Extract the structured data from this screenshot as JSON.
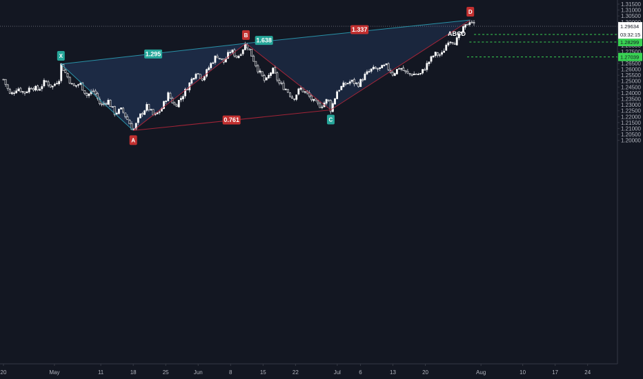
{
  "chart_data": {
    "type": "candlestick",
    "title": "ABCD",
    "price_axis": {
      "range": [
        1.195,
        1.3175
      ],
      "ticks": [
        "1.31500",
        "1.31000",
        "1.30500",
        "1.30000",
        "1.29500",
        "1.29000",
        "1.28500",
        "1.28000",
        "1.27500",
        "1.27000",
        "1.26500",
        "1.26000",
        "1.25500",
        "1.25000",
        "1.24500",
        "1.24000",
        "1.23500",
        "1.23000",
        "1.22500",
        "1.22000",
        "1.21500",
        "1.21000",
        "1.20500",
        "1.20000"
      ]
    },
    "time_axis": {
      "range": [
        0,
        216
      ],
      "ticks": [
        {
          "label": "20",
          "day": 0
        },
        {
          "label": "May",
          "day": 11
        },
        {
          "label": "11",
          "day": 21
        },
        {
          "label": "18",
          "day": 28
        },
        {
          "label": "25",
          "day": 35
        },
        {
          "label": "Jun",
          "day": 42
        },
        {
          "label": "8",
          "day": 49
        },
        {
          "label": "15",
          "day": 56
        },
        {
          "label": "22",
          "day": 63
        },
        {
          "label": "Jul",
          "day": 72
        },
        {
          "label": "6",
          "day": 77
        },
        {
          "label": "13",
          "day": 84
        },
        {
          "label": "20",
          "day": 91
        },
        {
          "label": "Aug",
          "day": 103
        },
        {
          "label": "10",
          "day": 112
        },
        {
          "label": "17",
          "day": 119
        },
        {
          "label": "24",
          "day": 126
        }
      ]
    },
    "current_price": {
      "value": 1.29634,
      "label": "1.29634",
      "countdown": "03:32:15",
      "color": "#ffffff"
    },
    "target_levels": [
      {
        "value": 1.28938,
        "label": "1.28938",
        "x_start": 101.5
      },
      {
        "value": 1.28299,
        "label": "1.28299",
        "x_start": 100.5
      },
      {
        "value": 1.27039,
        "label": "1.27039",
        "x_start": 100
      }
    ],
    "harmonic_pattern": {
      "points": [
        {
          "label": "X",
          "x": 12.4,
          "y": 1.2644,
          "color": "#26a69a"
        },
        {
          "label": "A",
          "x": 28,
          "y": 1.2083,
          "color": "#c23030"
        },
        {
          "label": "B",
          "x": 52.3,
          "y": 1.2819,
          "color": "#c23030"
        },
        {
          "label": "C",
          "x": 70.6,
          "y": 1.2257,
          "color": "#26a69a"
        },
        {
          "label": "D",
          "x": 100.7,
          "y": 1.3016,
          "color": "#c23030"
        }
      ],
      "ratios": [
        {
          "label": "1.295",
          "segment": "X-B",
          "x": 32.3,
          "y": 1.2729,
          "color": "#26a69a"
        },
        {
          "label": "1.638",
          "segment": "B-C",
          "x": 56.2,
          "y": 1.2844,
          "color": "#26a69a"
        },
        {
          "label": "1.337",
          "segment": "B-D",
          "x": 76.8,
          "y": 1.2935,
          "color": "#c23030"
        },
        {
          "label": "0.761",
          "segment": "A-C",
          "x": 49.2,
          "y": 1.2172,
          "color": "#c23030"
        }
      ]
    },
    "price_series": {
      "x": [
        0,
        1.5,
        3,
        4.5,
        6,
        7.5,
        9,
        10.5,
        12,
        12.4,
        13.5,
        15,
        16.5,
        18,
        19.5,
        21,
        22.5,
        24,
        25.5,
        27,
        28,
        29.5,
        31,
        32.5,
        34,
        35.5,
        37,
        38.5,
        40,
        41.5,
        43,
        44.5,
        46,
        47.5,
        49,
        50.5,
        52.3,
        53.5,
        55,
        56.5,
        58,
        59.5,
        61,
        62.5,
        64,
        65.5,
        67,
        68.5,
        70,
        70.6,
        72,
        73.5,
        75,
        76.5,
        78,
        79.5,
        81,
        82.5,
        84,
        85.5,
        87,
        88.5,
        90,
        91.5,
        93,
        94.5,
        96,
        97.5,
        99,
        100,
        100.7,
        101.5
      ],
      "y": [
        1.2515,
        1.238,
        1.2445,
        1.24,
        1.2455,
        1.2425,
        1.25,
        1.245,
        1.252,
        1.2644,
        1.256,
        1.245,
        1.248,
        1.238,
        1.242,
        1.229,
        1.234,
        1.223,
        1.226,
        1.216,
        1.2083,
        1.221,
        1.229,
        1.22,
        1.226,
        1.239,
        1.229,
        1.237,
        1.247,
        1.258,
        1.252,
        1.263,
        1.272,
        1.266,
        1.276,
        1.27,
        1.2819,
        1.272,
        1.259,
        1.249,
        1.26,
        1.248,
        1.243,
        1.235,
        1.244,
        1.239,
        1.232,
        1.229,
        1.235,
        1.2257,
        1.242,
        1.247,
        1.25,
        1.247,
        1.255,
        1.26,
        1.26,
        1.263,
        1.256,
        1.262,
        1.256,
        1.256,
        1.256,
        1.265,
        1.273,
        1.272,
        1.285,
        1.283,
        1.293,
        1.298,
        1.3016,
        1.2975
      ],
      "up_color": "#ffffff",
      "down_color": "#ffffff"
    },
    "colors": {
      "background": "#131722",
      "xab_fill": "#1f2e4a",
      "bcd_fill": "#1c2942",
      "teal": "#26a69a",
      "teal_line": "#2b9fb5",
      "red": "#c23030",
      "red_line": "#b3263a",
      "target_line": "#39d353",
      "target_tag": "#39d353",
      "axis_text": "#b2b5be",
      "border": "#363a45"
    }
  }
}
